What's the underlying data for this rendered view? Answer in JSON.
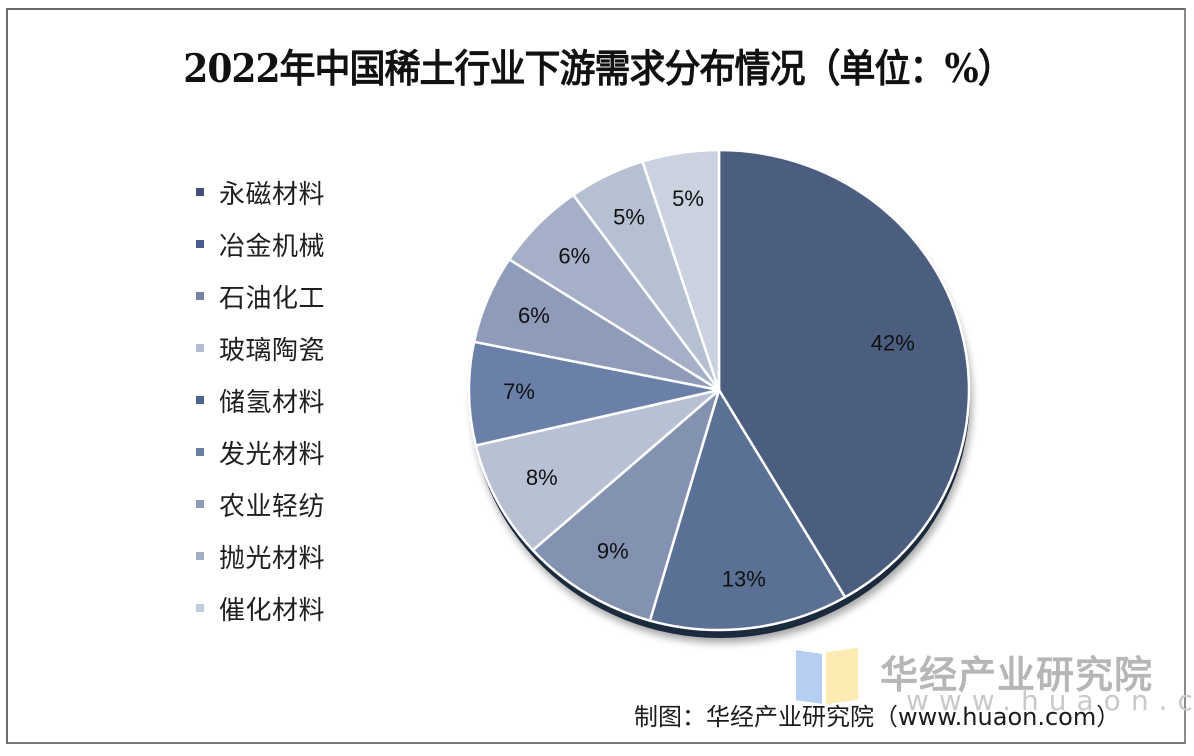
{
  "chart_data": {
    "type": "pie",
    "title": "2022年中国稀土行业下游需求分布情况（单位：%）",
    "unit": "%",
    "start_angle_deg": 0,
    "direction": "clockwise",
    "legend_position": "left",
    "categories": [
      "永磁材料",
      "冶金机械",
      "石油化工",
      "玻璃陶瓷",
      "储氢材料",
      "发光材料",
      "农业轻纺",
      "抛光材料",
      "催化材料"
    ],
    "values": [
      42,
      13,
      9,
      8,
      7,
      6,
      6,
      5,
      5
    ],
    "labels": [
      "42%",
      "13%",
      "9%",
      "8%",
      "7%",
      "6%",
      "6%",
      "5%",
      "5%"
    ],
    "colors": [
      "#4b5e80",
      "#5b7095",
      "#8292b0",
      "#b7c1d3",
      "#6a80a9",
      "#8e9cba",
      "#a5b0c8",
      "#b6c0d3",
      "#cbd2df"
    ]
  },
  "title": "2022年中国稀土行业下游需求分布情况（单位：%）",
  "legend": [
    {
      "label": "永磁材料",
      "color": "#3f5080"
    },
    {
      "label": "冶金机械",
      "color": "#4a5f8f"
    },
    {
      "label": "石油化工",
      "color": "#7486a8"
    },
    {
      "label": "玻璃陶瓷",
      "color": "#b4bed2"
    },
    {
      "label": "储氢材料",
      "color": "#4e6594"
    },
    {
      "label": "发光材料",
      "color": "#6a7ea6"
    },
    {
      "label": "农业轻纺",
      "color": "#8b9bbb"
    },
    {
      "label": "抛光材料",
      "color": "#a2aec6"
    },
    {
      "label": "催化材料",
      "color": "#c3cad9"
    }
  ],
  "watermark": {
    "name": "华经产业研究院",
    "url": "www.huaon.com"
  },
  "source": "制图：华经产业研究院（www.huaon.com）"
}
